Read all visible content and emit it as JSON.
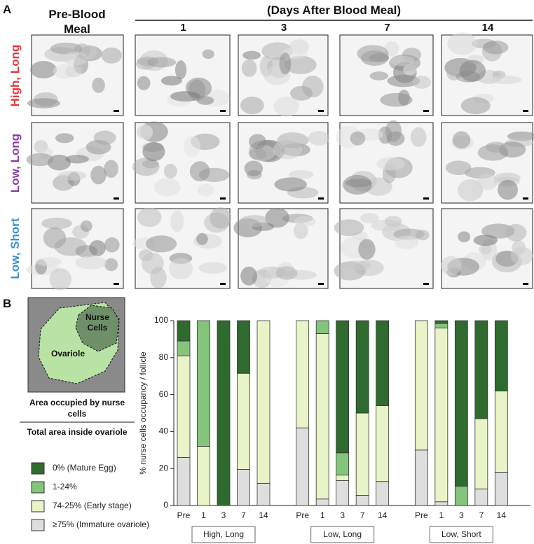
{
  "panel_a": {
    "label": "A",
    "pre_header": "Pre-Blood Meal",
    "days_header": "(Days After Blood Meal)",
    "days": [
      "1",
      "3",
      "7",
      "14"
    ],
    "rows": [
      {
        "name": "High, Long",
        "color": "#e0393e"
      },
      {
        "name": "Low, Long",
        "color": "#8b3fa3"
      },
      {
        "name": "Low, Short",
        "color": "#3b8fd1"
      }
    ]
  },
  "panel_b": {
    "label": "B",
    "nurse_cells": "Nurse Cells",
    "ovariole": "Ovariole",
    "numerator": "Area occupied by nurse cells",
    "denominator": "Total area inside ovariole"
  },
  "chart_data": {
    "type": "stacked_bar",
    "y_label": "% nurse cells occupancy / follicle",
    "categories": [
      "Pre",
      "1",
      "3",
      "7",
      "14",
      "Pre",
      "1",
      "3",
      "7",
      "14",
      "Pre",
      "1",
      "3",
      "7",
      "14"
    ],
    "groups": [
      {
        "name": "High, Long",
        "color": "#e0393e"
      },
      {
        "name": "Low, Long",
        "color": "#8b3fa3"
      },
      {
        "name": "Low, Short",
        "color": "#3b8fd1"
      }
    ],
    "series": [
      {
        "name": "≥75% (Immature ovariole)",
        "color": "#dedede",
        "values": [
          26,
          0,
          0,
          19.5,
          12,
          42,
          3.5,
          13.5,
          5.5,
          13,
          30,
          2,
          0,
          9,
          18
        ]
      },
      {
        "name": "74-25% (Early stage)",
        "color": "#e8f3c8",
        "values": [
          55,
          32,
          0,
          52,
          88,
          58,
          89.5,
          3,
          44.5,
          41,
          70,
          94,
          0,
          38,
          44
        ]
      },
      {
        "name": "1-24%",
        "color": "#84c47b",
        "values": [
          8,
          68,
          0,
          0,
          0,
          0,
          7,
          12,
          0,
          0,
          0,
          2.5,
          10.5,
          0,
          0
        ]
      },
      {
        "name": "0% (Mature Egg)",
        "color": "#2f6b2f",
        "values": [
          11,
          0,
          100,
          28.5,
          0,
          0,
          0,
          71.5,
          50,
          46,
          0,
          1.5,
          89.5,
          53,
          38
        ]
      }
    ],
    "ylim": [
      0,
      100
    ],
    "yticks": [
      0,
      20,
      40,
      60,
      80,
      100
    ]
  }
}
